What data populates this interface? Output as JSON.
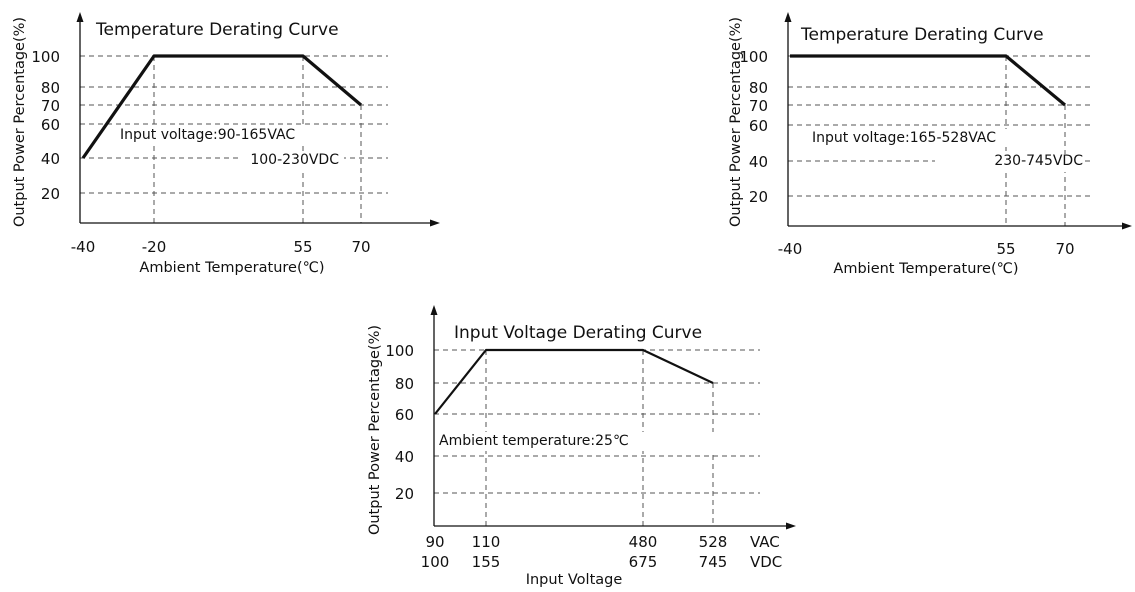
{
  "colors": {
    "curve": "#111111",
    "grid": "#555555",
    "text": "#111111",
    "background": "#ffffff"
  },
  "chart_data": [
    {
      "type": "line",
      "title": "Temperature Derating Curve",
      "xlabel": "Ambient Temperature(℃)",
      "ylabel": "Output Power  Percentage(%)",
      "annotation": [
        "Input voltage:90-165VAC",
        "100-230VDC"
      ],
      "x_ticks": [
        {
          "value": -40,
          "label": "-40"
        },
        {
          "value": -20,
          "label": "-20"
        },
        {
          "value": 55,
          "label": "55"
        },
        {
          "value": 70,
          "label": "70"
        }
      ],
      "y_ticks": [
        {
          "value": 20,
          "label": "20"
        },
        {
          "value": 40,
          "label": "40"
        },
        {
          "value": 60,
          "label": "60"
        },
        {
          "value": 70,
          "label": "70"
        },
        {
          "value": 80,
          "label": "80"
        },
        {
          "value": 100,
          "label": "100"
        }
      ],
      "series": [
        {
          "x": [
            -40,
            -20,
            55,
            70
          ],
          "y": [
            40,
            100,
            100,
            70
          ]
        }
      ],
      "xlim": [
        -40,
        90
      ],
      "ylim": [
        0,
        120
      ],
      "grid": true
    },
    {
      "type": "line",
      "title": "Temperature Derating Curve",
      "xlabel": "Ambient Temperature(℃)",
      "ylabel": "Output Power  Percentage(%)",
      "annotation": [
        "Input voltage:165-528VAC",
        "230-745VDC"
      ],
      "x_ticks": [
        {
          "value": -40,
          "label": "-40"
        },
        {
          "value": 55,
          "label": "55"
        },
        {
          "value": 70,
          "label": "70"
        }
      ],
      "y_ticks": [
        {
          "value": 20,
          "label": "20"
        },
        {
          "value": 40,
          "label": "40"
        },
        {
          "value": 60,
          "label": "60"
        },
        {
          "value": 70,
          "label": "70"
        },
        {
          "value": 80,
          "label": "80"
        },
        {
          "value": 100,
          "label": "100"
        }
      ],
      "series": [
        {
          "x": [
            -40,
            55,
            70
          ],
          "y": [
            100,
            100,
            70
          ]
        }
      ],
      "xlim": [
        -40,
        90
      ],
      "ylim": [
        0,
        120
      ],
      "grid": true
    },
    {
      "type": "line",
      "title": "Input Voltage Derating Curve",
      "xlabel": "Input Voltage",
      "ylabel": "Output Power  Percentage(%)",
      "annotation": [
        "Ambient temperature:25℃"
      ],
      "x_ticks": [
        {
          "value": 90,
          "label": "90",
          "label2": "100"
        },
        {
          "value": 110,
          "label": "110",
          "label2": "155"
        },
        {
          "value": 480,
          "label": "480",
          "label2": "675"
        },
        {
          "value": 528,
          "label": "528",
          "label2": "745"
        }
      ],
      "x_units": [
        "VAC",
        "VDC"
      ],
      "y_ticks": [
        {
          "value": 20,
          "label": "20"
        },
        {
          "value": 40,
          "label": "40"
        },
        {
          "value": 60,
          "label": "60"
        },
        {
          "value": 80,
          "label": "80"
        },
        {
          "value": 100,
          "label": "100"
        }
      ],
      "series": [
        {
          "x": [
            90,
            110,
            480,
            528
          ],
          "y": [
            60,
            100,
            100,
            80
          ]
        }
      ],
      "xlim": [
        90,
        620
      ],
      "ylim": [
        0,
        120
      ],
      "grid": true
    }
  ]
}
